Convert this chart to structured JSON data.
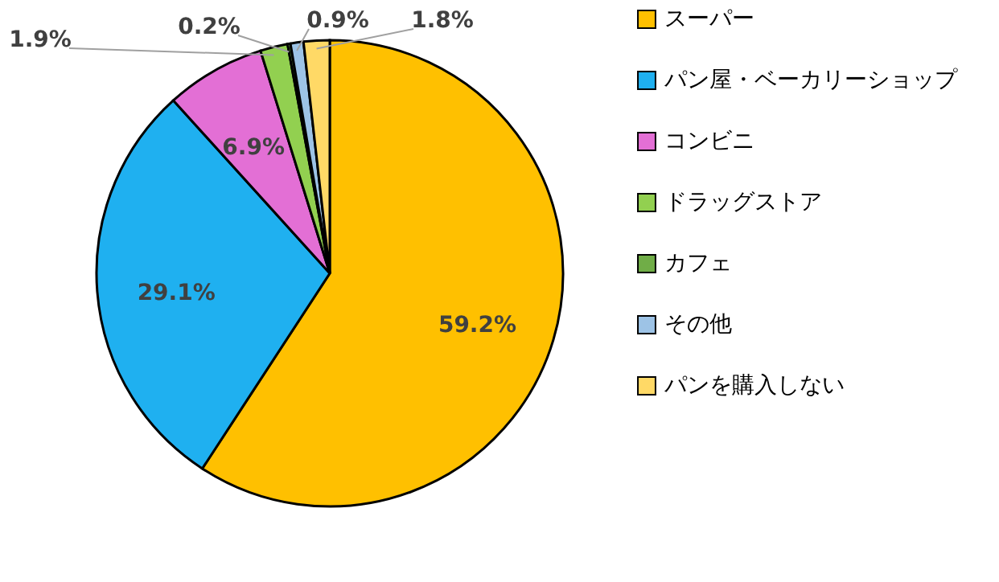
{
  "chart_data": {
    "type": "pie",
    "categories": [
      "スーパー",
      "パン屋・ベーカリーショップ",
      "コンビニ",
      "ドラッグストア",
      "カフェ",
      "その他",
      "パンを購入しない"
    ],
    "values": [
      59.2,
      29.1,
      6.9,
      1.9,
      0.2,
      0.9,
      1.8
    ],
    "colors": [
      "#ffc000",
      "#1fb0f0",
      "#e36fd5",
      "#92d050",
      "#70ad47",
      "#9dc3e6",
      "#ffd966"
    ],
    "value_labels": [
      "59.2%",
      "29.1%",
      "6.9%",
      "1.9%",
      "0.2%",
      "0.9%",
      "1.8%"
    ],
    "legend": "right"
  }
}
